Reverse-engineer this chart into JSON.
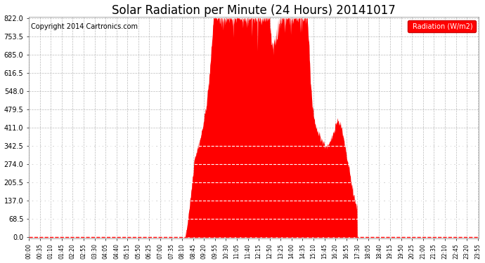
{
  "title": "Solar Radiation per Minute (24 Hours) 20141017",
  "copyright_text": "Copyright 2014 Cartronics.com",
  "legend_label": "Radiation (W/m2)",
  "y_ticks": [
    0.0,
    68.5,
    137.0,
    205.5,
    274.0,
    342.5,
    411.0,
    479.5,
    548.0,
    616.5,
    685.0,
    753.5,
    822.0
  ],
  "y_max": 822.0,
  "y_min": 0.0,
  "fill_color": "#FF0000",
  "line_color": "#FF0000",
  "bg_color": "#FFFFFF",
  "grid_color": "#AAAAAA",
  "dashed_hline_color": "#FFFFFF",
  "dashed_hline_values": [
    68.5,
    137.0,
    205.5,
    274.0,
    342.5
  ],
  "zero_hline_color": "#FF0000",
  "title_fontsize": 12,
  "copyright_fontsize": 7,
  "legend_bg": "#FF0000",
  "legend_text_color": "#FFFFFF",
  "tick_interval_min": 35
}
